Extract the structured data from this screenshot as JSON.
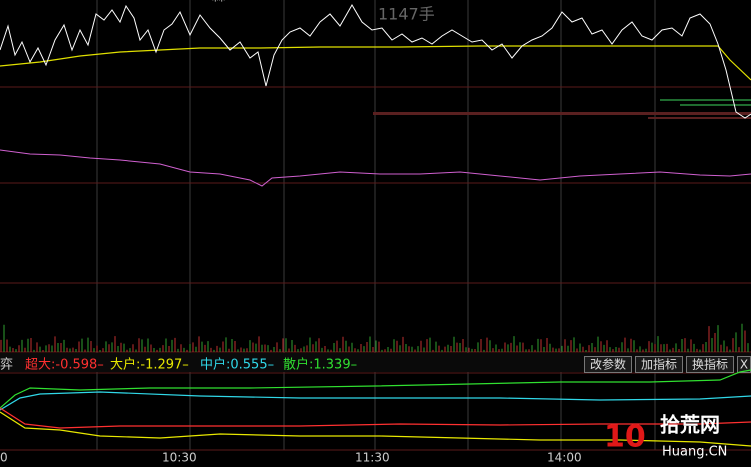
{
  "top": {
    "marker": "**",
    "volume_label": "1147手"
  },
  "indicator_bar": {
    "prefix": "弈",
    "items": [
      "超大:-0.598–",
      "大户:-1.297–",
      "中户:0.555–",
      "散户:1.339–"
    ]
  },
  "buttons": [
    "改参数",
    "加指标",
    "换指标",
    "X"
  ],
  "time_axis": [
    "0",
    "10:30",
    "11:30",
    "14:00"
  ],
  "watermark": {
    "logo": "10",
    "name": "拾荒网",
    "url": "Huang.CN"
  }
}
